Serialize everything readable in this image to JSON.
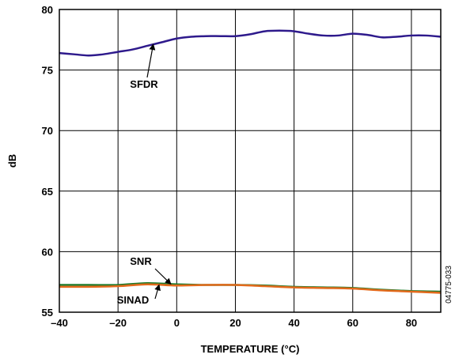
{
  "chart_data": {
    "type": "line",
    "xlabel": "TEMPERATURE (°C)",
    "ylabel": "dB",
    "xlim": [
      -40,
      90
    ],
    "ylim": [
      55,
      80
    ],
    "x_ticks": [
      -40,
      -20,
      0,
      20,
      40,
      60,
      80
    ],
    "x_tick_labels": [
      "–40",
      "–20",
      "0",
      "20",
      "40",
      "60",
      "80"
    ],
    "y_ticks": [
      55,
      60,
      65,
      70,
      75,
      80
    ],
    "y_tick_labels": [
      "55",
      "60",
      "65",
      "70",
      "75",
      "80"
    ],
    "grid": true,
    "series": [
      {
        "name": "SFDR",
        "color": "#2e1a8c",
        "x": [
          -40,
          -35,
          -30,
          -25,
          -20,
          -15,
          -10,
          -5,
          0,
          5,
          10,
          15,
          20,
          25,
          30,
          35,
          40,
          45,
          50,
          55,
          60,
          65,
          70,
          75,
          80,
          85,
          90
        ],
        "y": [
          76.4,
          76.3,
          76.2,
          76.3,
          76.5,
          76.7,
          77.0,
          77.3,
          77.6,
          77.75,
          77.8,
          77.8,
          77.8,
          77.95,
          78.2,
          78.25,
          78.2,
          78.0,
          77.85,
          77.85,
          78.0,
          77.9,
          77.7,
          77.75,
          77.85,
          77.85,
          77.75
        ]
      },
      {
        "name": "SNR",
        "color": "#1f7a2a",
        "x": [
          -40,
          -30,
          -20,
          -10,
          0,
          10,
          20,
          30,
          40,
          50,
          60,
          70,
          80,
          90
        ],
        "y": [
          57.25,
          57.25,
          57.25,
          57.4,
          57.3,
          57.25,
          57.25,
          57.2,
          57.1,
          57.05,
          57.0,
          56.85,
          56.75,
          56.7
        ]
      },
      {
        "name": "SINAD",
        "color": "#e36a1c",
        "x": [
          -40,
          -30,
          -20,
          -10,
          0,
          10,
          20,
          30,
          40,
          50,
          60,
          70,
          80,
          90
        ],
        "y": [
          57.1,
          57.1,
          57.15,
          57.3,
          57.2,
          57.25,
          57.25,
          57.15,
          57.05,
          57.0,
          56.95,
          56.8,
          56.7,
          56.6
        ]
      }
    ],
    "annotations": [
      {
        "text": "SFDR",
        "target_series": "SFDR",
        "target_x": -8
      },
      {
        "text": "SNR",
        "target_series": "SNR",
        "target_x": -2
      },
      {
        "text": "SINAD",
        "target_series": "SINAD",
        "target_x": -6
      }
    ],
    "figure_code": "04775-033"
  }
}
